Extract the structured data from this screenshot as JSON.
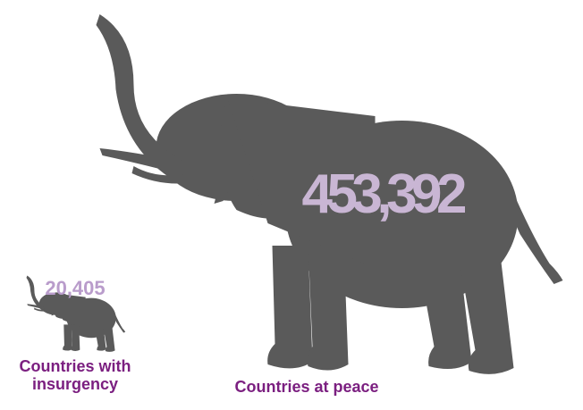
{
  "chart_data": {
    "type": "bar",
    "categories": [
      "Countries with insurgency",
      "Countries at peace"
    ],
    "category_lines": [
      [
        "Countries with",
        "insurgency"
      ],
      [
        "Countries at peace"
      ]
    ],
    "values": [
      20405,
      453392
    ],
    "value_labels": [
      "20,405",
      "453,392"
    ],
    "mark_shape": "elephant-icon",
    "title": "",
    "xlabel": "",
    "ylabel": ""
  },
  "colors": {
    "elephant": "#5a5a5a",
    "value_large": "#c9b6d4",
    "value_small": "#b99ccb",
    "category_label": "#7b1f80",
    "background": "#ffffff"
  }
}
